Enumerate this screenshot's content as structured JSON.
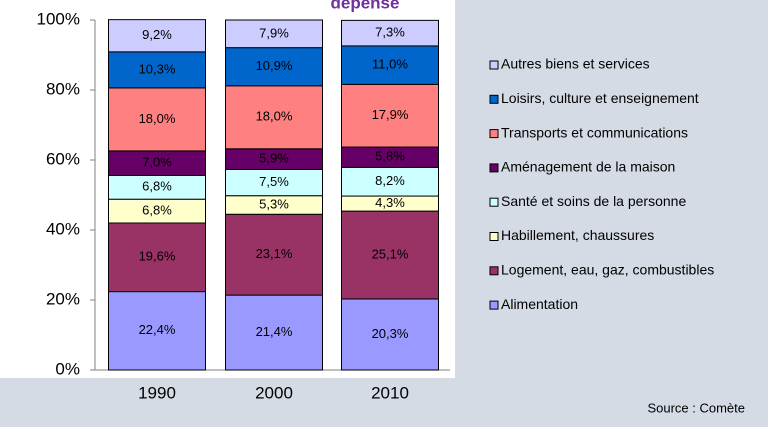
{
  "chart_data": {
    "type": "stacked_bar",
    "title": "dépense",
    "source": "Source : Comète",
    "categories": [
      "1990",
      "2000",
      "2010"
    ],
    "series": [
      {
        "name": "Alimentation",
        "color": "#9999ff",
        "values": [
          22.4,
          21.4,
          20.3
        ],
        "value_labels": [
          "22,4%",
          "21,4%",
          "20,3%"
        ]
      },
      {
        "name": "Logement, eau, gaz, combustibles",
        "color": "#993366",
        "values": [
          19.6,
          23.1,
          25.1
        ],
        "value_labels": [
          "19,6%",
          "23,1%",
          "25,1%"
        ]
      },
      {
        "name": "Habillement, chaussures",
        "color": "#ffffcc",
        "values": [
          6.8,
          5.3,
          4.3
        ],
        "value_labels": [
          "6,8%",
          "5,3%",
          "4,3%"
        ]
      },
      {
        "name": "Santé et soins de la personne",
        "color": "#ccffff",
        "values": [
          6.8,
          7.5,
          8.2
        ],
        "value_labels": [
          "6,8%",
          "7,5%",
          "8,2%"
        ]
      },
      {
        "name": "Aménagement de la maison",
        "color": "#660066",
        "values": [
          7.0,
          5.9,
          5.8
        ],
        "value_labels": [
          "7,0%",
          "5,9%",
          "5,8%"
        ]
      },
      {
        "name": "Transports et communications",
        "color": "#ff8080",
        "values": [
          18.0,
          18.0,
          17.9
        ],
        "value_labels": [
          "18,0%",
          "18,0%",
          "17,9%"
        ]
      },
      {
        "name": "Loisirs, culture et enseignement",
        "color": "#0066cc",
        "values": [
          10.3,
          10.9,
          11.0
        ],
        "value_labels": [
          "10,3%",
          "10,9%",
          "11,0%"
        ]
      },
      {
        "name": "Autres biens et services",
        "color": "#ccccff",
        "values": [
          9.2,
          7.9,
          7.3
        ],
        "value_labels": [
          "9,2%",
          "7,9%",
          "7,3%"
        ]
      }
    ],
    "ylim": [
      0,
      100
    ],
    "yticks": [
      {
        "value": 0,
        "label": "0%"
      },
      {
        "value": 20,
        "label": "20%"
      },
      {
        "value": 40,
        "label": "40%"
      },
      {
        "value": 60,
        "label": "60%"
      },
      {
        "value": 80,
        "label": "80%"
      },
      {
        "value": 100,
        "label": "100%"
      }
    ]
  }
}
